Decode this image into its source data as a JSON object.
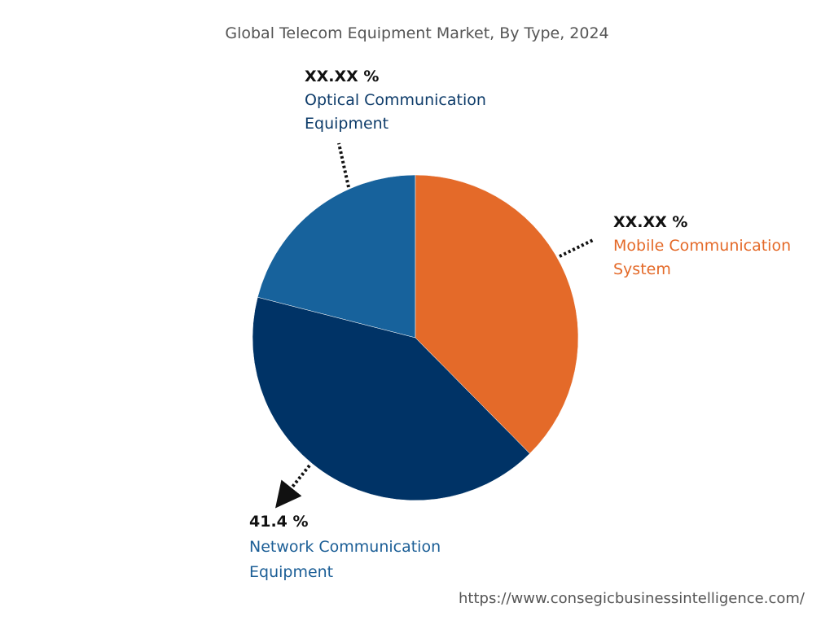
{
  "chart_data": {
    "type": "pie",
    "title": "Global Telecom Equipment Market, By Type, 2024",
    "slices": [
      {
        "label_lines": [
          "Mobile Communication",
          "System"
        ],
        "value_label": "XX.XX %",
        "value": 37.6,
        "color": "#E46A29",
        "label_color": "#E46A29"
      },
      {
        "label_lines": [
          "Network Communication",
          "Equipment"
        ],
        "value_label": "41.4 %",
        "value": 41.4,
        "color": "#003366",
        "label_color": "#1B5E96"
      },
      {
        "label_lines": [
          "Optical Communication",
          "Equipment"
        ],
        "value_label": "XX.XX %",
        "value": 21.0,
        "color": "#17629C",
        "label_color": "#0E3C6A"
      }
    ],
    "start_angle": "12 o'clock",
    "direction": "clockwise"
  },
  "footer": {
    "url": "https://www.consegicbusinessintelligence.com/"
  }
}
